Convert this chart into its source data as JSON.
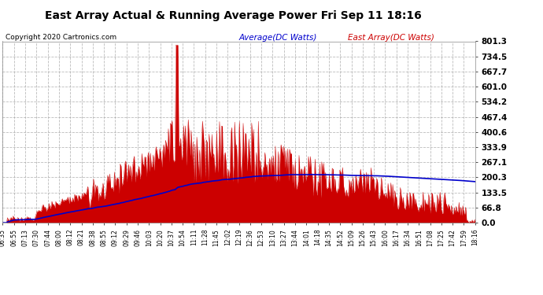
{
  "title": "East Array Actual & Running Average Power Fri Sep 11 18:16",
  "copyright": "Copyright 2020 Cartronics.com",
  "legend_avg": "Average(DC Watts)",
  "legend_east": "East Array(DC Watts)",
  "bg_color": "#ffffff",
  "plot_bg_color": "#ffffff",
  "grid_color": "#aaaaaa",
  "title_color": "#000000",
  "copyright_color": "#000000",
  "avg_color": "#0000cc",
  "east_color": "#cc0000",
  "east_fill_color": "#cc0000",
  "yticks": [
    0.0,
    66.8,
    133.5,
    200.3,
    267.1,
    333.9,
    400.6,
    467.4,
    534.2,
    601.0,
    667.7,
    734.5,
    801.3
  ],
  "ymax": 801.3,
  "ymin": 0.0,
  "xtick_labels": [
    "06:35",
    "06:55",
    "07:13",
    "07:30",
    "07:44",
    "08:00",
    "08:12",
    "08:21",
    "08:38",
    "08:55",
    "09:12",
    "09:29",
    "09:46",
    "10:03",
    "10:20",
    "10:37",
    "10:54",
    "11:11",
    "11:28",
    "11:45",
    "12:02",
    "12:19",
    "12:36",
    "12:53",
    "13:10",
    "13:27",
    "13:44",
    "14:01",
    "14:18",
    "14:35",
    "14:52",
    "15:09",
    "15:26",
    "15:43",
    "16:00",
    "16:17",
    "16:34",
    "16:51",
    "17:08",
    "17:25",
    "17:42",
    "17:59",
    "18:16"
  ],
  "num_points": 500
}
